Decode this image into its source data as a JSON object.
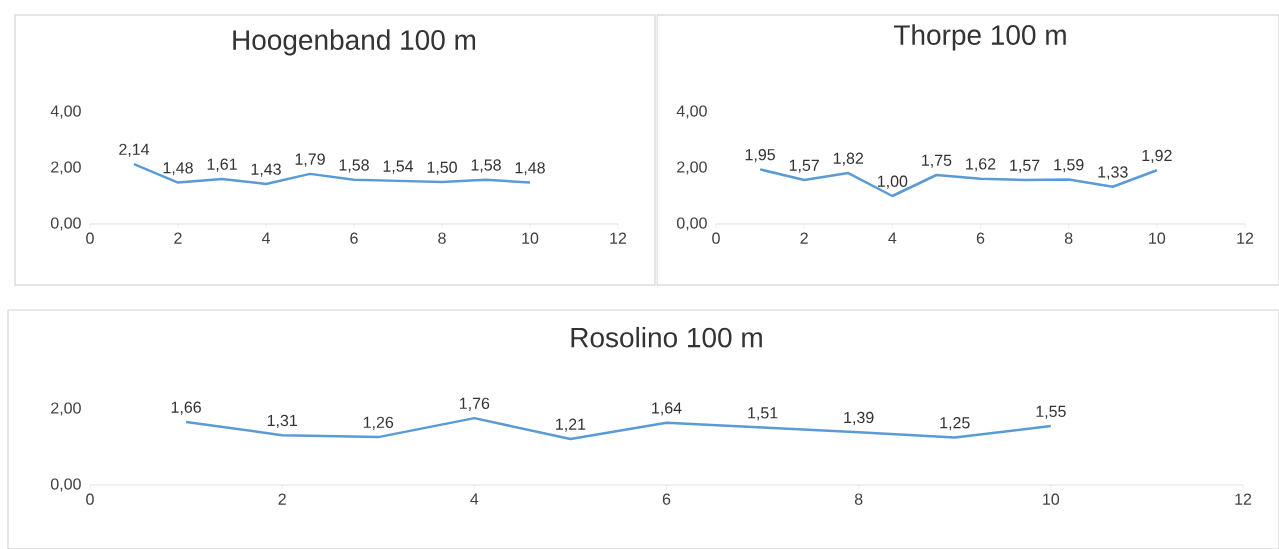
{
  "chart_data": [
    {
      "type": "line",
      "title": "Hoogenband 100 m",
      "x": [
        1,
        2,
        3,
        4,
        5,
        6,
        7,
        8,
        9,
        10
      ],
      "color": "#5b9bd5",
      "marker": "none",
      "values": [
        2.14,
        1.48,
        1.61,
        1.43,
        1.79,
        1.58,
        1.54,
        1.5,
        1.58,
        1.48
      ],
      "value_labels": [
        "2,14",
        "1,48",
        "1,61",
        "1,43",
        "1,79",
        "1,58",
        "1,54",
        "1,50",
        "1,58",
        "1,48"
      ],
      "xlim": [
        0,
        12
      ],
      "xticks": [
        0,
        2,
        4,
        6,
        8,
        10,
        12
      ],
      "ylim": [
        0,
        4
      ],
      "yticks": [
        {
          "value": 0,
          "label": "0,00"
        },
        {
          "value": 2,
          "label": "2,00"
        },
        {
          "value": 4,
          "label": "4,00"
        }
      ]
    },
    {
      "type": "line",
      "title": "Thorpe 100 m",
      "x": [
        1,
        2,
        3,
        4,
        5,
        6,
        7,
        8,
        9,
        10
      ],
      "color": "#5b9bd5",
      "marker": "none",
      "values": [
        1.95,
        1.57,
        1.82,
        1.0,
        1.75,
        1.62,
        1.57,
        1.59,
        1.33,
        1.92
      ],
      "value_labels": [
        "1,95",
        "1,57",
        "1,82",
        "1,00",
        "1,75",
        "1,62",
        "1,57",
        "1,59",
        "1,33",
        "1,92"
      ],
      "xlim": [
        0,
        12
      ],
      "xticks": [
        0,
        2,
        4,
        6,
        8,
        10,
        12
      ],
      "ylim": [
        0,
        4
      ],
      "yticks": [
        {
          "value": 0,
          "label": "0,00"
        },
        {
          "value": 2,
          "label": "2,00"
        },
        {
          "value": 4,
          "label": "4,00"
        }
      ]
    },
    {
      "type": "line",
      "title": "Rosolino 100 m",
      "x": [
        1,
        2,
        3,
        4,
        5,
        6,
        7,
        8,
        9,
        10
      ],
      "color": "#5b9bd5",
      "marker": "none",
      "values": [
        1.66,
        1.31,
        1.26,
        1.76,
        1.21,
        1.64,
        1.51,
        1.39,
        1.25,
        1.55
      ],
      "value_labels": [
        "1,66",
        "1,31",
        "1,26",
        "1,76",
        "1,21",
        "1,64",
        "1,51",
        "1,39",
        "1,25",
        "1,55"
      ],
      "xlim": [
        0,
        12
      ],
      "xticks": [
        0,
        2,
        4,
        6,
        8,
        10,
        12
      ],
      "ylim": [
        0,
        2
      ],
      "yticks": [
        {
          "value": 0,
          "label": "0,00"
        },
        {
          "value": 2,
          "label": "2,00"
        }
      ]
    }
  ]
}
